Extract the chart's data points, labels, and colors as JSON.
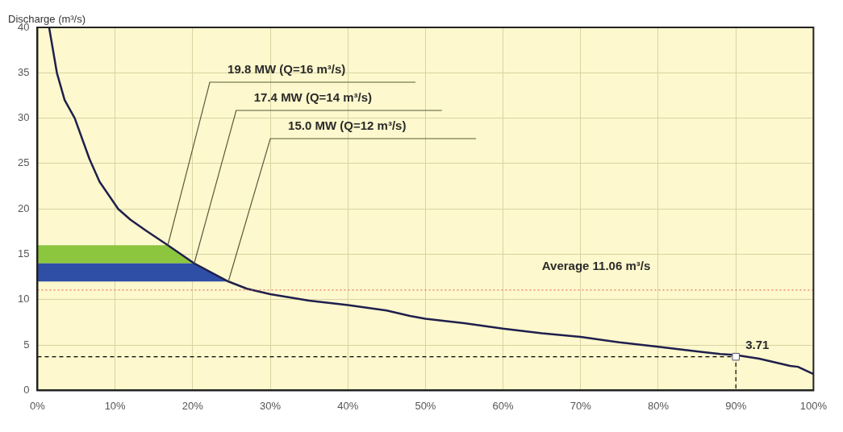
{
  "chart_data": {
    "type": "line",
    "ylabel": "Discharge (m³/s)",
    "xlim": [
      0,
      100
    ],
    "xticks": [
      {
        "value": 0,
        "label": "0%"
      },
      {
        "value": 10,
        "label": "10%"
      },
      {
        "value": 20,
        "label": "20%"
      },
      {
        "value": 30,
        "label": "30%"
      },
      {
        "value": 40,
        "label": "40%"
      },
      {
        "value": 50,
        "label": "50%"
      },
      {
        "value": 60,
        "label": "60%"
      },
      {
        "value": 70,
        "label": "70%"
      },
      {
        "value": 80,
        "label": "80%"
      },
      {
        "value": 90,
        "label": "90%"
      },
      {
        "value": 100,
        "label": "100%"
      }
    ],
    "ylim": [
      0,
      40
    ],
    "yticks": [
      0,
      5,
      10,
      15,
      20,
      25,
      30,
      35,
      40
    ],
    "grid": true,
    "legend": false,
    "marker": "none",
    "series": [
      {
        "color": "#1f1f4d",
        "x": [
          1.5,
          2.5,
          3.5,
          4.8,
          6.7,
          8,
          10.4,
          12,
          14,
          16.8,
          20.2,
          24.6,
          27,
          30,
          35,
          40,
          45,
          48,
          50,
          55,
          60,
          65,
          70,
          75,
          80,
          85,
          88,
          90,
          93,
          96,
          97,
          98,
          100
        ],
        "values": [
          40,
          35,
          32,
          30,
          25.5,
          23,
          20,
          18.8,
          17.6,
          16,
          14,
          12,
          11.2,
          10.6,
          9.9,
          9.4,
          8.8,
          8.2,
          7.9,
          7.4,
          6.8,
          6.3,
          5.9,
          5.3,
          4.8,
          4.3,
          4,
          3.9,
          3.5,
          2.9,
          2.7,
          2.6,
          1.8
        ]
      },
      {
        "type": "line",
        "color": "#000000",
        "line_style": "dashed",
        "x": [
          0,
          90,
          90
        ],
        "values": [
          3.71,
          3.71,
          0
        ]
      },
      {
        "type": "scatter",
        "color": "#ffffff",
        "marker": "square",
        "x": [
          90
        ],
        "values": [
          3.71
        ],
        "value_labels": [
          "3.71"
        ]
      }
    ],
    "bands": [
      {
        "axis": "y",
        "from": 14,
        "to": 16,
        "color": "#8cc63e"
      },
      {
        "axis": "y",
        "from": 12,
        "to": 14,
        "color": "#2f4ea6"
      }
    ],
    "ref_lines": [
      {
        "axis": "y",
        "value": 11.06,
        "label": "Average 11.06 m³/s",
        "color": "#e05a4a",
        "line_style": "dotted"
      }
    ],
    "annotations": [
      {
        "text": "19.8 MW (Q=16 m³/s)",
        "x": 16.8,
        "y": 16
      },
      {
        "text": "17.4 MW (Q=14 m³/s)",
        "x": 20.2,
        "y": 14
      },
      {
        "text": "15.0 MW (Q=12 m³/s)",
        "x": 24.6,
        "y": 12
      }
    ]
  }
}
